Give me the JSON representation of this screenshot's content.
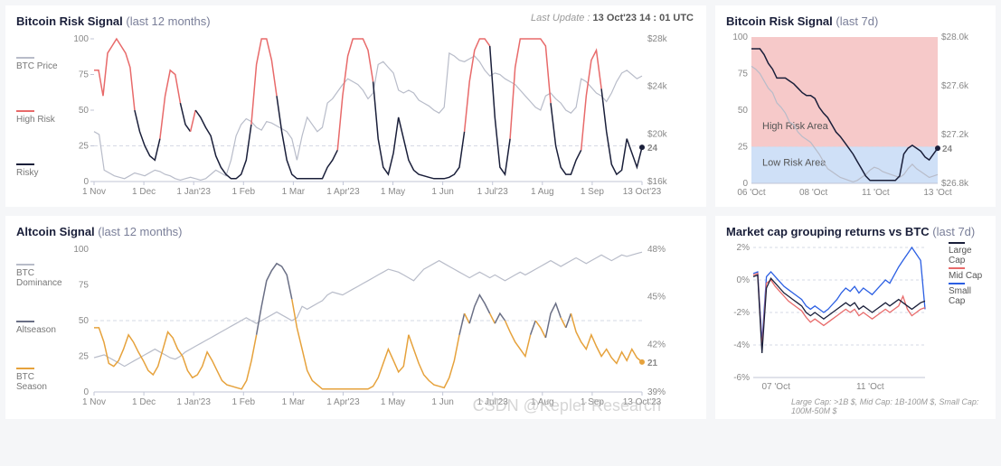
{
  "colors": {
    "navy": "#1a1f3a",
    "red": "#e86a6a",
    "grey": "#b8bcc9",
    "dgrey": "#6a6f85",
    "orange": "#e6a23c",
    "blue": "#2b5fe3",
    "redA": "#f6c9c9",
    "blueA": "#cfe0f7",
    "grid": "#d6d9e4",
    "axis": "#c2c6d6",
    "bg": "#ffffff",
    "txt": "#888"
  },
  "watermark": "CSDN @Kepler Research",
  "p1": {
    "title": "Bitcoin Risk Signal",
    "sub": "(last 12 months)",
    "update_pre": "Last Update :",
    "update": "13 Oct'23  14 : 01 UTC",
    "legend": [
      {
        "c": "grey",
        "t": "BTC Price"
      },
      {
        "c": "red",
        "t": "High Risk"
      },
      {
        "c": "navy",
        "t": "Risky"
      }
    ],
    "yL": {
      "min": 0,
      "max": 100,
      "ticks": [
        0,
        25,
        50,
        75,
        100
      ]
    },
    "yR": {
      "ticks": [
        "$16k",
        "$20k",
        "$24k",
        "$28k"
      ]
    },
    "x": [
      "1 Nov",
      "1 Dec",
      "1 Jan'23",
      "1 Feb",
      "1 Mar",
      "1 Apr'23",
      "1 May",
      "1 Jun",
      "1 Jul'23",
      "1 Aug",
      "1 Sep",
      "13 Oct'23"
    ],
    "end": {
      "v": 24,
      "c": "navy"
    },
    "risk": [
      78,
      60,
      90,
      95,
      100,
      95,
      90,
      80,
      50,
      35,
      25,
      18,
      15,
      30,
      60,
      78,
      75,
      55,
      40,
      35,
      50,
      45,
      38,
      32,
      18,
      10,
      5,
      2,
      2,
      5,
      15,
      40,
      82,
      100,
      100,
      85,
      60,
      35,
      15,
      5,
      2,
      2,
      2,
      2,
      2,
      2,
      10,
      15,
      22,
      60,
      88,
      100,
      100,
      100,
      92,
      70,
      30,
      10,
      5,
      20,
      45,
      30,
      15,
      8,
      5,
      4,
      3,
      2,
      2,
      2,
      3,
      5,
      10,
      35,
      70,
      92,
      100,
      100,
      95,
      45,
      10,
      5,
      30,
      80,
      100,
      100,
      100,
      100,
      100,
      95,
      55,
      25,
      10,
      5,
      5,
      15,
      22,
      60,
      85,
      92,
      65,
      35,
      12,
      5,
      8,
      30,
      20,
      10,
      24
    ],
    "price": [
      0.35,
      0.33,
      0.08,
      0.06,
      0.04,
      0.03,
      0.02,
      0.04,
      0.06,
      0.05,
      0.04,
      0.06,
      0.08,
      0.07,
      0.05,
      0.04,
      0.02,
      0.01,
      0.02,
      0.03,
      0.02,
      0.01,
      0.02,
      0.05,
      0.08,
      0.06,
      0.04,
      0.15,
      0.32,
      0.4,
      0.44,
      0.42,
      0.38,
      0.36,
      0.42,
      0.41,
      0.39,
      0.37,
      0.35,
      0.3,
      0.15,
      0.32,
      0.45,
      0.4,
      0.35,
      0.38,
      0.55,
      0.58,
      0.63,
      0.68,
      0.72,
      0.7,
      0.68,
      0.64,
      0.58,
      0.62,
      0.82,
      0.84,
      0.8,
      0.76,
      0.64,
      0.62,
      0.64,
      0.62,
      0.57,
      0.55,
      0.53,
      0.5,
      0.48,
      0.52,
      0.9,
      0.88,
      0.85,
      0.84,
      0.86,
      0.88,
      0.84,
      0.78,
      0.74,
      0.76,
      0.75,
      0.72,
      0.7,
      0.68,
      0.64,
      0.6,
      0.56,
      0.52,
      0.5,
      0.6,
      0.62,
      0.58,
      0.55,
      0.5,
      0.48,
      0.52,
      0.72,
      0.7,
      0.66,
      0.62,
      0.6,
      0.56,
      0.62,
      0.7,
      0.76,
      0.78,
      0.75,
      0.72,
      0.74
    ]
  },
  "p2": {
    "title": "Bitcoin Risk Signal",
    "sub": "(last 7d)",
    "yL": {
      "ticks": [
        0,
        25,
        50,
        75,
        100
      ]
    },
    "yR": {
      "ticks": [
        "$26.8k",
        "$27.2k",
        "$27.6k",
        "$28.0k"
      ]
    },
    "x": [
      "06 'Oct",
      "08 'Oct",
      "11 'Oct",
      "13 'Oct"
    ],
    "hi": "High Risk Area",
    "lo": "Low Risk Area",
    "end": {
      "v": 24,
      "c": "navy"
    },
    "risk": [
      92,
      92,
      92,
      88,
      82,
      78,
      72,
      72,
      72,
      70,
      68,
      65,
      62,
      60,
      60,
      58,
      52,
      48,
      45,
      40,
      35,
      32,
      28,
      24,
      20,
      15,
      10,
      5,
      2,
      2,
      2,
      2,
      2,
      2,
      2,
      5,
      20,
      24,
      26,
      24,
      22,
      18,
      16,
      20,
      24
    ],
    "price": [
      0.8,
      0.78,
      0.75,
      0.7,
      0.65,
      0.62,
      0.55,
      0.52,
      0.48,
      0.42,
      0.4,
      0.35,
      0.32,
      0.3,
      0.28,
      0.24,
      0.2,
      0.15,
      0.1,
      0.08,
      0.06,
      0.04,
      0.03,
      0.02,
      0.01,
      0.02,
      0.04,
      0.06,
      0.09,
      0.11,
      0.1,
      0.08,
      0.07,
      0.06,
      0.05,
      0.04,
      0.06,
      0.1,
      0.13,
      0.1,
      0.08,
      0.06,
      0.04,
      0.05,
      0.06
    ]
  },
  "p3": {
    "title": "Altcoin Signal",
    "sub": "(last 12 months)",
    "legend": [
      {
        "c": "grey",
        "t": "BTC Dominance"
      },
      {
        "c": "dgrey",
        "t": "Altseason"
      },
      {
        "c": "orange",
        "t": "BTC Season"
      }
    ],
    "yL": {
      "ticks": [
        0,
        25,
        50,
        75,
        100
      ]
    },
    "yR": {
      "ticks": [
        "39%",
        "42%",
        "45%",
        "48%"
      ]
    },
    "x": [
      "1 Nov",
      "1 Dec",
      "1 Jan'23",
      "1 Feb",
      "1 Mar",
      "1 Apr'23",
      "1 May",
      "1 Jun",
      "1 Jul'23",
      "1 Aug",
      "1 Sep",
      "13 Oct'23"
    ],
    "end": {
      "v": 21,
      "c": "orange"
    },
    "sig": [
      45,
      35,
      20,
      18,
      22,
      30,
      40,
      35,
      28,
      22,
      15,
      12,
      18,
      30,
      42,
      38,
      30,
      25,
      15,
      10,
      12,
      18,
      28,
      22,
      15,
      8,
      5,
      4,
      3,
      2,
      8,
      22,
      40,
      60,
      78,
      85,
      90,
      88,
      82,
      65,
      45,
      30,
      15,
      8,
      5,
      2,
      2,
      2,
      2,
      2,
      2,
      2,
      2,
      2,
      2,
      4,
      10,
      20,
      30,
      22,
      14,
      18,
      40,
      30,
      20,
      12,
      8,
      5,
      4,
      3,
      10,
      22,
      40,
      55,
      48,
      60,
      68,
      62,
      55,
      48,
      55,
      50,
      42,
      35,
      30,
      25,
      40,
      50,
      45,
      38,
      55,
      62,
      52,
      45,
      55,
      42,
      35,
      30,
      40,
      32,
      25,
      30,
      24,
      20,
      28,
      22,
      30,
      24,
      21
    ],
    "dom": [
      0.24,
      0.25,
      0.26,
      0.24,
      0.22,
      0.2,
      0.18,
      0.2,
      0.22,
      0.24,
      0.26,
      0.28,
      0.3,
      0.28,
      0.26,
      0.24,
      0.23,
      0.25,
      0.28,
      0.3,
      0.32,
      0.34,
      0.36,
      0.38,
      0.4,
      0.42,
      0.44,
      0.46,
      0.48,
      0.5,
      0.52,
      0.5,
      0.48,
      0.5,
      0.52,
      0.54,
      0.56,
      0.54,
      0.52,
      0.5,
      0.52,
      0.6,
      0.58,
      0.6,
      0.62,
      0.64,
      0.68,
      0.7,
      0.69,
      0.68,
      0.7,
      0.72,
      0.74,
      0.76,
      0.78,
      0.8,
      0.82,
      0.84,
      0.86,
      0.85,
      0.84,
      0.82,
      0.8,
      0.78,
      0.82,
      0.86,
      0.88,
      0.9,
      0.92,
      0.9,
      0.88,
      0.86,
      0.84,
      0.82,
      0.8,
      0.82,
      0.84,
      0.82,
      0.8,
      0.82,
      0.8,
      0.78,
      0.8,
      0.82,
      0.84,
      0.82,
      0.84,
      0.86,
      0.88,
      0.9,
      0.92,
      0.9,
      0.88,
      0.9,
      0.92,
      0.94,
      0.92,
      0.9,
      0.92,
      0.94,
      0.96,
      0.94,
      0.92,
      0.94,
      0.96,
      0.95,
      0.96,
      0.97,
      0.98
    ]
  },
  "p4": {
    "title": "Market cap grouping returns vs BTC",
    "sub": "(last 7d)",
    "yL": {
      "ticks": [
        "-6%",
        "-4%",
        "-2%",
        "0%",
        "2%"
      ],
      "v": [
        -6,
        -4,
        -2,
        0,
        2
      ]
    },
    "x": [
      "07 'Oct",
      "11 'Oct"
    ],
    "legend": [
      {
        "c": "navy",
        "t": "Large Cap"
      },
      {
        "c": "red",
        "t": "Mid Cap"
      },
      {
        "c": "blue",
        "t": "Small Cap"
      }
    ],
    "foot": "Large Cap: >1B $, Mid Cap: 1B-100M $, Small Cap: 100M-50M $",
    "lc": [
      0.2,
      0.3,
      -4.5,
      -0.5,
      0.1,
      -0.2,
      -0.5,
      -0.8,
      -1.0,
      -1.2,
      -1.4,
      -1.6,
      -2.0,
      -2.2,
      -2.0,
      -2.2,
      -2.4,
      -2.2,
      -2.0,
      -1.8,
      -1.6,
      -1.4,
      -1.6,
      -1.4,
      -1.8,
      -1.6,
      -1.8,
      -2.0,
      -1.8,
      -1.6,
      -1.4,
      -1.6,
      -1.4,
      -1.2,
      -1.4,
      -1.6,
      -1.8,
      -1.6,
      -1.4,
      -1.3
    ],
    "mc": [
      0.3,
      0.4,
      -4.2,
      -0.2,
      0.0,
      -0.4,
      -0.7,
      -1.0,
      -1.3,
      -1.5,
      -1.7,
      -1.9,
      -2.3,
      -2.6,
      -2.4,
      -2.6,
      -2.8,
      -2.6,
      -2.4,
      -2.2,
      -2.0,
      -1.8,
      -2.0,
      -1.8,
      -2.2,
      -2.0,
      -2.2,
      -2.4,
      -2.2,
      -2.0,
      -1.8,
      -2.0,
      -1.8,
      -1.6,
      -1.0,
      -1.8,
      -2.2,
      -2.0,
      -1.8,
      -1.7
    ],
    "sc": [
      0.4,
      0.5,
      -3.8,
      0.2,
      0.5,
      0.2,
      -0.1,
      -0.4,
      -0.6,
      -0.8,
      -1.0,
      -1.2,
      -1.6,
      -1.8,
      -1.6,
      -1.8,
      -2.0,
      -1.8,
      -1.5,
      -1.2,
      -0.8,
      -0.5,
      -0.7,
      -0.4,
      -0.8,
      -0.5,
      -0.7,
      -0.9,
      -0.6,
      -0.3,
      0.0,
      -0.2,
      0.3,
      0.8,
      1.2,
      1.6,
      2.0,
      1.6,
      1.2,
      -1.8
    ]
  }
}
